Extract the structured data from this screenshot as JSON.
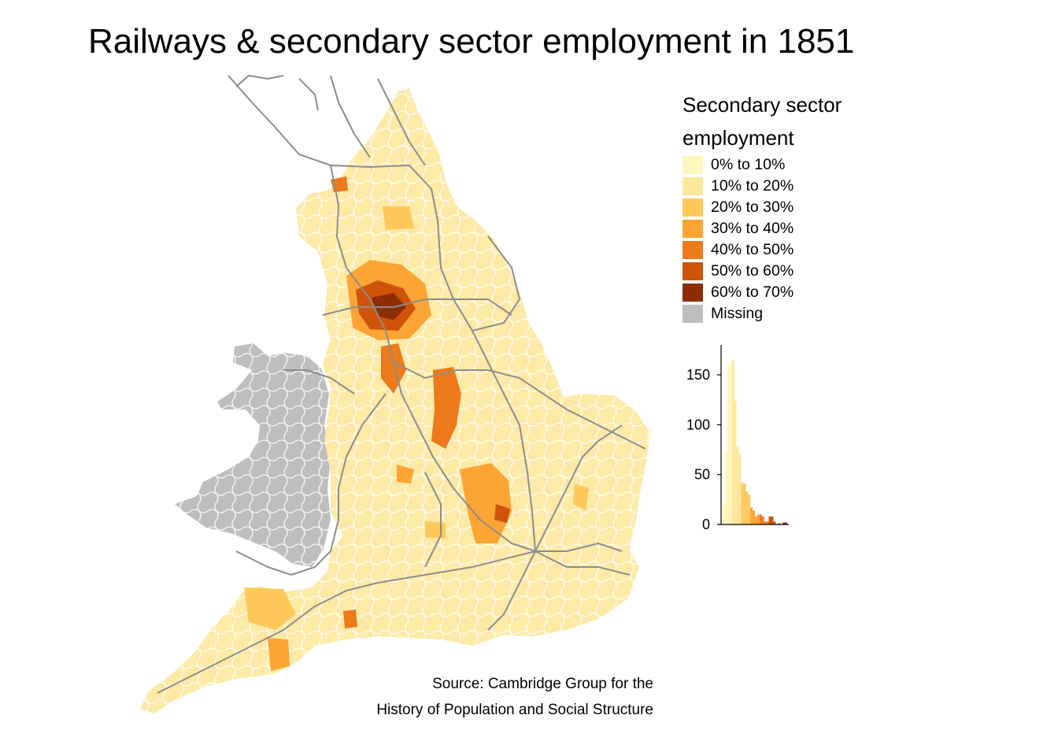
{
  "title": "Railways & secondary sector employment in 1851",
  "source_line1": "Source: Cambridge Group for the",
  "source_line2": "History of Population and Social Structure",
  "legend": {
    "title_line1": "Secondary sector",
    "title_line2": "employment",
    "items": [
      {
        "label": "0% to 10%",
        "color": "#FFF7BC"
      },
      {
        "label": "10% to 20%",
        "color": "#FEE79B"
      },
      {
        "label": "20% to 30%",
        "color": "#FEC95A"
      },
      {
        "label": "30% to 40%",
        "color": "#FCA534"
      },
      {
        "label": "40% to 50%",
        "color": "#ED7A1B"
      },
      {
        "label": "50% to 60%",
        "color": "#CF5309"
      },
      {
        "label": "60% to 70%",
        "color": "#8C2D04"
      },
      {
        "label": "Missing",
        "color": "#BEBEBE"
      }
    ]
  },
  "colors": {
    "railway": "#8C8C8C",
    "boundary": "#FFFFFF",
    "base_fill": "#FEE9A6"
  },
  "chart_data": {
    "type": "bar",
    "title": "",
    "xlabel": "",
    "ylabel": "",
    "ylim": [
      0,
      180
    ],
    "yticks": [
      "0",
      "50",
      "100",
      "150"
    ],
    "ytick_values": [
      0,
      50,
      100,
      150
    ],
    "bin_width_percent": 2.5,
    "x_range_percent": [
      0,
      70
    ],
    "values": [
      22,
      73,
      160,
      162,
      165,
      124,
      78,
      70,
      42,
      41,
      33,
      30,
      17,
      14,
      8,
      10,
      10,
      8,
      3,
      3,
      8,
      8,
      3,
      0,
      1,
      0,
      2,
      2
    ]
  }
}
